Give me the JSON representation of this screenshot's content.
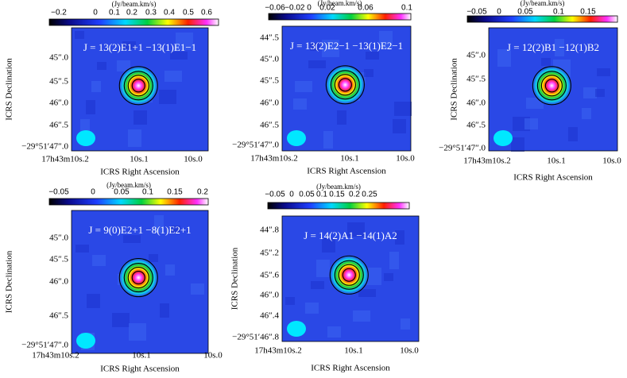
{
  "panels": [
    {
      "title": "J = 13(2)E1+1 −13(1)E1−1",
      "colorbar_unit": "(Jy/beam.km/s)",
      "colorbar_ticks": [
        "−0.2",
        "0",
        "0.1",
        "0.2",
        "0.3",
        "0.4",
        "0.5",
        "0.6"
      ],
      "y_ticks": [
        "45″.0",
        "45″.5",
        "46″.0",
        "46″.5",
        "−29°51′47″.0"
      ],
      "x_ticks": [
        "17h43m10s.2",
        "10s.1",
        "10s.0"
      ],
      "x_label": "ICRS Right Ascension",
      "y_label": "ICRS Declination"
    },
    {
      "title": "J = 13(2)E2−1 −13(1)E2−1",
      "colorbar_unit": "(Jy/beam.km/s)",
      "colorbar_ticks": [
        "−0.06",
        "−0.02 0",
        "0.02",
        "0.06",
        "0.1"
      ],
      "y_ticks": [
        "44″.5",
        "45″.0",
        "45″.5",
        "46″.0",
        "46″.5",
        "−29°51′47″.0"
      ],
      "x_ticks": [
        "17h43m10s.2",
        "10s.1",
        "10s.0"
      ],
      "x_label": "ICRS Right Ascension",
      "y_label": null
    },
    {
      "title": "J = 12(2)B1 −12(1)B2",
      "colorbar_unit": "(Jy/beam.km/s)",
      "colorbar_ticks": [
        "−0.05",
        "0",
        "0.05",
        "0.1",
        "0.15"
      ],
      "y_ticks": [
        "45″.0",
        "45″.5",
        "46″.0",
        "46″.5",
        "−29°51′47″.0"
      ],
      "x_ticks": [
        "17h43m10s.2",
        "10s.1",
        "10s.0"
      ],
      "x_label": "ICRS Right Ascension",
      "y_label": "ICRS Declination"
    },
    {
      "title": "J = 9(0)E2+1 −8(1)E2+1",
      "colorbar_unit": "(Jy/beam.km/s)",
      "colorbar_ticks": [
        "−0.05",
        "0",
        "0.05",
        "0.1",
        "0.15",
        "0.2"
      ],
      "y_ticks": [
        "45″.0",
        "45″.5",
        "46″.0",
        "46″.5",
        "−29°51′47″.0"
      ],
      "x_ticks": [
        "17h43m10s.2",
        "10s.1",
        "10s.0"
      ],
      "x_label": "ICRS Right Ascension",
      "y_label": "ICRS Declination"
    },
    {
      "title": "J = 14(2)A1 −14(1)A2",
      "colorbar_unit": "(Jy/beam.km/s)",
      "colorbar_ticks": [
        "−0.05",
        "0",
        "0.05",
        "0.1",
        "0.15",
        "0.2",
        "0.25"
      ],
      "y_ticks": [
        "44″.8",
        "45″.2",
        "45″.6",
        "46″.0",
        "46″.4",
        "−29°51′46″.8"
      ],
      "x_ticks": [
        "17h43m10s.2",
        "10s.1",
        "10s.0"
      ],
      "x_label": "ICRS Right Ascension",
      "y_label": "ICRS Declination"
    }
  ]
}
